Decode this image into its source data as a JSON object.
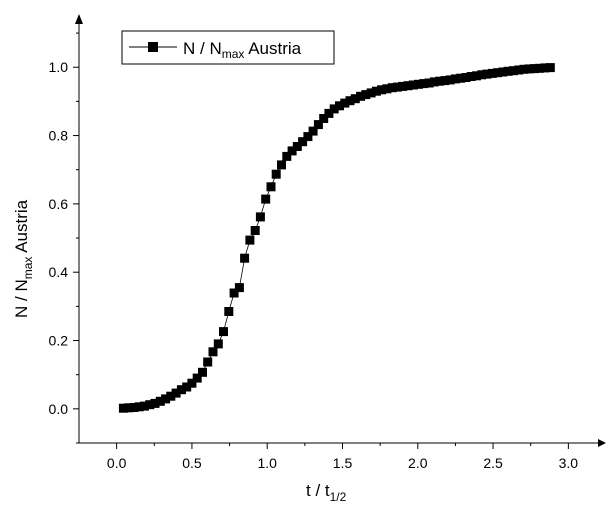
{
  "chart_data": {
    "type": "scatter",
    "title": "",
    "xlabel": {
      "main": "t / t",
      "sub": "1/2"
    },
    "ylabel": {
      "pre": "N / N",
      "sub": "max",
      "post": " Austria"
    },
    "xlim": [
      -0.25,
      3.25
    ],
    "ylim": [
      -0.1,
      1.15
    ],
    "x_ticks": [
      0.0,
      0.5,
      1.0,
      1.5,
      2.0,
      2.5,
      3.0
    ],
    "x_tick_labels": [
      "0.0",
      "0.5",
      "1.0",
      "1.5",
      "2.0",
      "2.5",
      "3.0"
    ],
    "y_ticks": [
      0.0,
      0.2,
      0.4,
      0.6,
      0.8,
      1.0
    ],
    "y_tick_labels": [
      "0.0",
      "0.2",
      "0.4",
      "0.6",
      "0.8",
      "1.0"
    ],
    "grid": false,
    "legend_position": "top-left",
    "marker_color": "#000000",
    "line_color": "#000000",
    "series": [
      {
        "name": {
          "pre": "N / N",
          "sub": "max",
          "post": " Austria"
        },
        "x": [
          0.045,
          0.08,
          0.115,
          0.15,
          0.185,
          0.22,
          0.255,
          0.29,
          0.325,
          0.36,
          0.395,
          0.43,
          0.465,
          0.5,
          0.535,
          0.57,
          0.605,
          0.64,
          0.675,
          0.71,
          0.745,
          0.78,
          0.815,
          0.85,
          0.885,
          0.92,
          0.955,
          0.99,
          1.025,
          1.06,
          1.095,
          1.13,
          1.165,
          1.2,
          1.235,
          1.27,
          1.305,
          1.34,
          1.375,
          1.41,
          1.445,
          1.48,
          1.515,
          1.55,
          1.585,
          1.62,
          1.655,
          1.69,
          1.725,
          1.76,
          1.795,
          1.83,
          1.865,
          1.9,
          1.935,
          1.97,
          2.005,
          2.04,
          2.075,
          2.11,
          2.145,
          2.18,
          2.215,
          2.25,
          2.285,
          2.32,
          2.355,
          2.39,
          2.425,
          2.46,
          2.495,
          2.53,
          2.565,
          2.6,
          2.635,
          2.67,
          2.705,
          2.74,
          2.775,
          2.81,
          2.845,
          2.88
        ],
        "y": [
          0.002,
          0.003,
          0.004,
          0.006,
          0.008,
          0.012,
          0.016,
          0.022,
          0.029,
          0.037,
          0.046,
          0.056,
          0.064,
          0.075,
          0.09,
          0.107,
          0.137,
          0.167,
          0.19,
          0.226,
          0.285,
          0.339,
          0.355,
          0.441,
          0.494,
          0.522,
          0.562,
          0.614,
          0.65,
          0.687,
          0.714,
          0.739,
          0.755,
          0.768,
          0.782,
          0.797,
          0.813,
          0.832,
          0.85,
          0.865,
          0.878,
          0.887,
          0.895,
          0.902,
          0.908,
          0.915,
          0.92,
          0.925,
          0.93,
          0.934,
          0.937,
          0.94,
          0.942,
          0.944,
          0.946,
          0.948,
          0.95,
          0.952,
          0.954,
          0.957,
          0.959,
          0.961,
          0.963,
          0.966,
          0.968,
          0.97,
          0.973,
          0.975,
          0.978,
          0.98,
          0.982,
          0.984,
          0.986,
          0.988,
          0.99,
          0.992,
          0.994,
          0.995,
          0.996,
          0.997,
          0.998,
          0.999
        ]
      }
    ]
  }
}
